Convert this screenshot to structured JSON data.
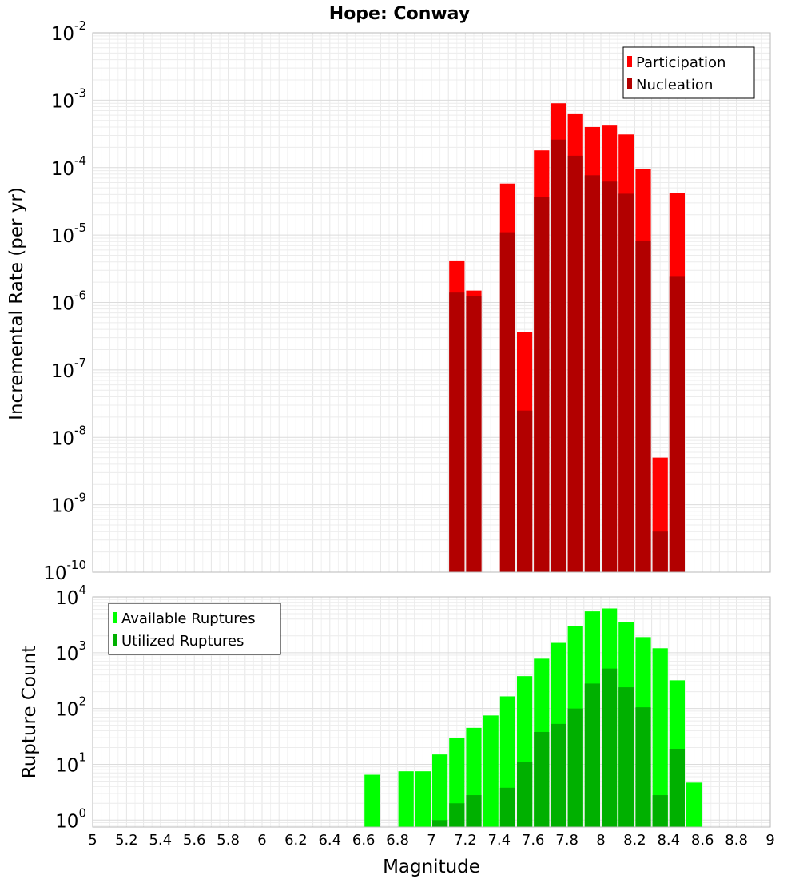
{
  "chart_data": [
    {
      "type": "bar",
      "title": "Hope: Conway",
      "xlabel": "",
      "ylabel": "Incremental Rate (per yr)",
      "yscale": "log",
      "ylim": [
        1e-10,
        0.01
      ],
      "xlim": [
        5,
        9
      ],
      "bar_width": 0.1,
      "grid": true,
      "legend_position": "top-right",
      "series": [
        {
          "name": "Participation",
          "color": "#ff0000",
          "x": [
            7.15,
            7.25,
            7.45,
            7.55,
            7.65,
            7.75,
            7.85,
            7.95,
            8.05,
            8.15,
            8.25,
            8.35,
            8.45
          ],
          "values": [
            4.2e-06,
            1.5e-06,
            5.8e-05,
            3.6e-07,
            0.00018,
            0.0009,
            0.00062,
            0.0004,
            0.00042,
            0.00031,
            9.5e-05,
            5e-09,
            4.2e-05
          ]
        },
        {
          "name": "Nucleation",
          "color": "#b20000",
          "x": [
            7.15,
            7.25,
            7.45,
            7.55,
            7.65,
            7.75,
            7.85,
            7.95,
            8.05,
            8.15,
            8.25,
            8.35,
            8.45
          ],
          "values": [
            1.4e-06,
            1.25e-06,
            1.1e-05,
            2.5e-08,
            3.7e-05,
            0.00026,
            0.00015,
            7.7e-05,
            6.2e-05,
            4.1e-05,
            8.3e-06,
            4e-10,
            2.4e-06
          ]
        }
      ]
    },
    {
      "type": "bar",
      "title": "",
      "xlabel": "Magnitude",
      "ylabel": "Rupture Count",
      "yscale": "log",
      "ylim": [
        0.75,
        10000.0
      ],
      "xlim": [
        5,
        9
      ],
      "bar_width": 0.1,
      "grid": true,
      "legend_position": "top-left",
      "x_ticks": [
        "5",
        "5.2",
        "5.4",
        "5.6",
        "5.8",
        "6",
        "6.2",
        "6.4",
        "6.6",
        "6.8",
        "7",
        "7.2",
        "7.4",
        "7.6",
        "7.8",
        "8",
        "8.2",
        "8.4",
        "8.6",
        "8.8",
        "9"
      ],
      "series": [
        {
          "name": "Available Ruptures",
          "color": "#00ff00",
          "x": [
            6.65,
            6.85,
            6.95,
            7.05,
            7.15,
            7.25,
            7.35,
            7.45,
            7.55,
            7.65,
            7.75,
            7.85,
            7.95,
            8.05,
            8.15,
            8.25,
            8.35,
            8.45,
            8.55
          ],
          "values": [
            6.5,
            7.5,
            7.5,
            15,
            30,
            45,
            75,
            165,
            380,
            780,
            1500,
            3000,
            5500,
            6200,
            3500,
            1900,
            1200,
            320,
            4.7
          ]
        },
        {
          "name": "Utilized Ruptures",
          "color": "#00b000",
          "x": [
            7.05,
            7.15,
            7.25,
            7.45,
            7.55,
            7.65,
            7.75,
            7.85,
            7.95,
            8.05,
            8.15,
            8.25,
            8.35,
            8.45
          ],
          "values": [
            1,
            2,
            2.8,
            3.8,
            11,
            38,
            53,
            100,
            280,
            520,
            240,
            105,
            2.8,
            19
          ]
        }
      ]
    }
  ]
}
